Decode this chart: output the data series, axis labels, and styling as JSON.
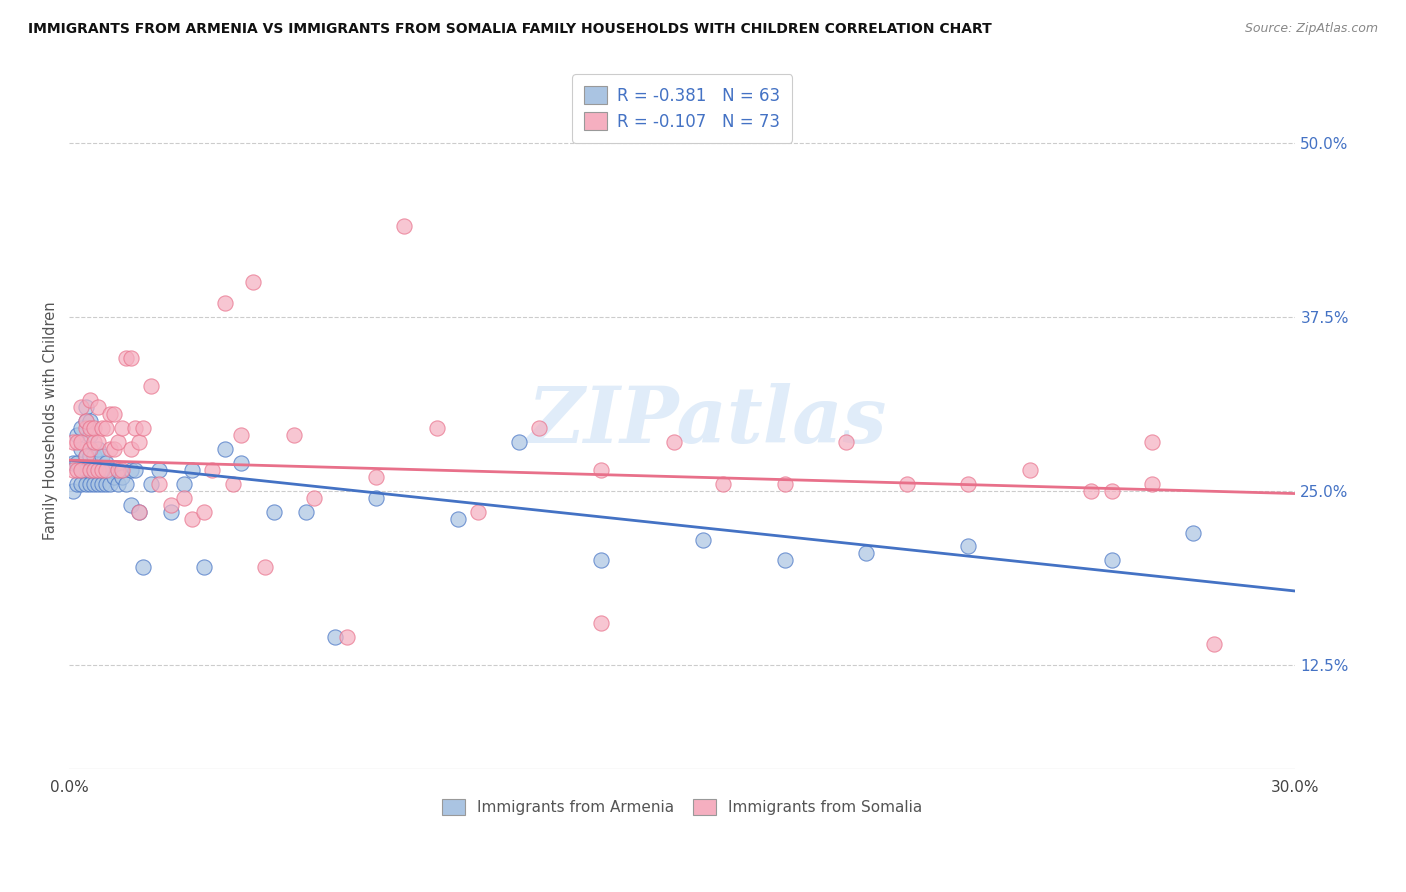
{
  "title": "IMMIGRANTS FROM ARMENIA VS IMMIGRANTS FROM SOMALIA FAMILY HOUSEHOLDS WITH CHILDREN CORRELATION CHART",
  "source": "Source: ZipAtlas.com",
  "ylabel": "Family Households with Children",
  "xlim": [
    0.0,
    0.3
  ],
  "ylim": [
    0.05,
    0.55
  ],
  "xticks": [
    0.0,
    0.05,
    0.1,
    0.15,
    0.2,
    0.25,
    0.3
  ],
  "xtick_labels": [
    "0.0%",
    "",
    "",
    "",
    "",
    "",
    "30.0%"
  ],
  "ytick_labels_right": [
    "12.5%",
    "25.0%",
    "37.5%",
    "50.0%"
  ],
  "yticks_right": [
    0.125,
    0.25,
    0.375,
    0.5
  ],
  "armenia_R": "-0.381",
  "armenia_N": "63",
  "somalia_R": "-0.107",
  "somalia_N": "73",
  "armenia_color": "#aac4e2",
  "somalia_color": "#f5afc0",
  "armenia_line_color": "#4472c4",
  "somalia_line_color": "#e8708a",
  "watermark": "ZIPatlas",
  "armenia_line_x0": 0.0,
  "armenia_line_y0": 0.272,
  "armenia_line_x1": 0.3,
  "armenia_line_y1": 0.178,
  "somalia_line_x0": 0.0,
  "somalia_line_y0": 0.272,
  "somalia_line_x1": 0.3,
  "somalia_line_y1": 0.248,
  "armenia_scatter_x": [
    0.001,
    0.001,
    0.002,
    0.002,
    0.002,
    0.003,
    0.003,
    0.003,
    0.003,
    0.004,
    0.004,
    0.004,
    0.004,
    0.004,
    0.005,
    0.005,
    0.005,
    0.005,
    0.005,
    0.006,
    0.006,
    0.006,
    0.007,
    0.007,
    0.007,
    0.008,
    0.008,
    0.008,
    0.009,
    0.009,
    0.01,
    0.01,
    0.011,
    0.012,
    0.012,
    0.013,
    0.014,
    0.015,
    0.015,
    0.016,
    0.017,
    0.018,
    0.02,
    0.022,
    0.025,
    0.028,
    0.03,
    0.033,
    0.038,
    0.042,
    0.05,
    0.058,
    0.065,
    0.075,
    0.095,
    0.11,
    0.13,
    0.155,
    0.175,
    0.195,
    0.22,
    0.255,
    0.275
  ],
  "armenia_scatter_y": [
    0.25,
    0.27,
    0.255,
    0.27,
    0.29,
    0.255,
    0.265,
    0.28,
    0.295,
    0.255,
    0.265,
    0.275,
    0.3,
    0.31,
    0.255,
    0.265,
    0.275,
    0.29,
    0.3,
    0.255,
    0.265,
    0.275,
    0.255,
    0.265,
    0.28,
    0.255,
    0.265,
    0.275,
    0.255,
    0.27,
    0.255,
    0.265,
    0.26,
    0.255,
    0.265,
    0.26,
    0.255,
    0.265,
    0.24,
    0.265,
    0.235,
    0.195,
    0.255,
    0.265,
    0.235,
    0.255,
    0.265,
    0.195,
    0.28,
    0.27,
    0.235,
    0.235,
    0.145,
    0.245,
    0.23,
    0.285,
    0.2,
    0.215,
    0.2,
    0.205,
    0.21,
    0.2,
    0.22
  ],
  "somalia_scatter_x": [
    0.001,
    0.001,
    0.002,
    0.002,
    0.003,
    0.003,
    0.003,
    0.004,
    0.004,
    0.004,
    0.005,
    0.005,
    0.005,
    0.005,
    0.006,
    0.006,
    0.006,
    0.007,
    0.007,
    0.007,
    0.008,
    0.008,
    0.009,
    0.009,
    0.01,
    0.01,
    0.011,
    0.011,
    0.012,
    0.012,
    0.013,
    0.013,
    0.014,
    0.015,
    0.015,
    0.016,
    0.017,
    0.017,
    0.018,
    0.02,
    0.022,
    0.025,
    0.028,
    0.03,
    0.033,
    0.035,
    0.038,
    0.04,
    0.042,
    0.045,
    0.048,
    0.055,
    0.06,
    0.068,
    0.075,
    0.082,
    0.09,
    0.1,
    0.115,
    0.13,
    0.148,
    0.16,
    0.175,
    0.19,
    0.205,
    0.22,
    0.235,
    0.25,
    0.265,
    0.28,
    0.265,
    0.255,
    0.13
  ],
  "somalia_scatter_y": [
    0.265,
    0.285,
    0.265,
    0.285,
    0.265,
    0.285,
    0.31,
    0.275,
    0.295,
    0.3,
    0.265,
    0.28,
    0.295,
    0.315,
    0.265,
    0.285,
    0.295,
    0.265,
    0.285,
    0.31,
    0.265,
    0.295,
    0.265,
    0.295,
    0.28,
    0.305,
    0.28,
    0.305,
    0.265,
    0.285,
    0.265,
    0.295,
    0.345,
    0.28,
    0.345,
    0.295,
    0.285,
    0.235,
    0.295,
    0.325,
    0.255,
    0.24,
    0.245,
    0.23,
    0.235,
    0.265,
    0.385,
    0.255,
    0.29,
    0.4,
    0.195,
    0.29,
    0.245,
    0.145,
    0.26,
    0.44,
    0.295,
    0.235,
    0.295,
    0.265,
    0.285,
    0.255,
    0.255,
    0.285,
    0.255,
    0.255,
    0.265,
    0.25,
    0.285,
    0.14,
    0.255,
    0.25,
    0.155
  ]
}
